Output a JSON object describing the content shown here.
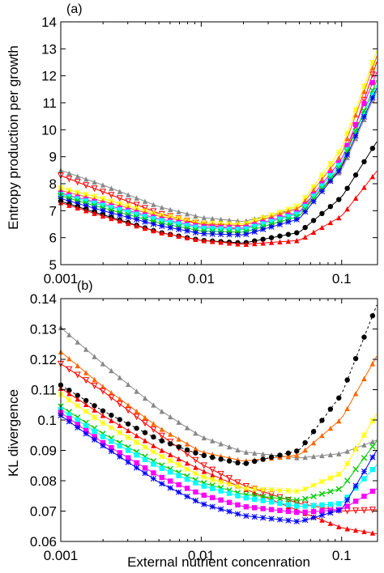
{
  "chart_data": [
    {
      "type": "line",
      "panel_label": "(a)",
      "xlabel": "",
      "ylabel": "Entropy production per growth",
      "xscale": "log",
      "xlim": [
        0.001,
        0.18
      ],
      "ylim": [
        5,
        14
      ],
      "xticks": [
        0.001,
        0.01,
        0.1
      ],
      "xtick_labels": [
        "0.001",
        "0.01",
        "0.1"
      ],
      "yticks": [
        5,
        6,
        7,
        8,
        9,
        10,
        11,
        12,
        13,
        14
      ],
      "ytick_labels": [
        "5",
        "6",
        "7",
        "8",
        "9",
        "10",
        "11",
        "12",
        "13",
        "14"
      ],
      "grid": false,
      "series": [
        {
          "color": "#888888",
          "marker": "triangle",
          "x": [
            0.001,
            0.002,
            0.005,
            0.01,
            0.02,
            0.05,
            0.1,
            0.18
          ],
          "values": [
            8.5,
            7.95,
            7.15,
            6.75,
            6.6,
            7.1,
            8.5,
            11.5
          ]
        },
        {
          "color": "#ff0000",
          "marker": "triangle-down",
          "x": [
            0.001,
            0.002,
            0.005,
            0.01,
            0.02,
            0.05,
            0.1,
            0.18
          ],
          "values": [
            8.3,
            7.7,
            6.9,
            6.5,
            6.3,
            6.9,
            8.6,
            12.6
          ]
        },
        {
          "color": "#ffff00",
          "marker": "star",
          "x": [
            0.001,
            0.002,
            0.005,
            0.01,
            0.02,
            0.05,
            0.1,
            0.18
          ],
          "values": [
            7.85,
            7.45,
            6.85,
            6.55,
            6.5,
            7.2,
            9.3,
            13.0
          ]
        },
        {
          "color": "#ff6600",
          "marker": "triangle",
          "x": [
            0.001,
            0.002,
            0.005,
            0.01,
            0.02,
            0.05,
            0.1,
            0.18
          ],
          "values": [
            7.75,
            7.35,
            6.8,
            6.5,
            6.45,
            7.1,
            9.1,
            12.8
          ]
        },
        {
          "color": "#ff00ff",
          "marker": "square",
          "x": [
            0.001,
            0.002,
            0.005,
            0.01,
            0.02,
            0.05,
            0.1,
            0.18
          ],
          "values": [
            7.65,
            7.25,
            6.7,
            6.4,
            6.35,
            6.95,
            8.9,
            12.2
          ]
        },
        {
          "color": "#00ffff",
          "marker": "square",
          "x": [
            0.001,
            0.002,
            0.005,
            0.01,
            0.02,
            0.05,
            0.1,
            0.18
          ],
          "values": [
            7.6,
            7.2,
            6.65,
            6.35,
            6.3,
            6.9,
            8.8,
            11.7
          ]
        },
        {
          "color": "#00cc00",
          "marker": "x",
          "x": [
            0.001,
            0.002,
            0.005,
            0.01,
            0.02,
            0.05,
            0.1,
            0.18
          ],
          "values": [
            7.55,
            7.1,
            6.55,
            6.25,
            6.2,
            6.8,
            8.7,
            11.9
          ]
        },
        {
          "color": "#0000ff",
          "marker": "star",
          "x": [
            0.001,
            0.002,
            0.005,
            0.01,
            0.02,
            0.05,
            0.1,
            0.18
          ],
          "values": [
            7.45,
            7.0,
            6.45,
            6.15,
            6.1,
            6.7,
            8.6,
            11.6
          ]
        },
        {
          "color": "#000000",
          "marker": "circle",
          "x": [
            0.001,
            0.002,
            0.005,
            0.01,
            0.02,
            0.05,
            0.1,
            0.18
          ],
          "values": [
            7.35,
            6.85,
            6.2,
            5.9,
            5.8,
            6.2,
            7.5,
            9.6
          ]
        },
        {
          "color": "#ff0000",
          "marker": "triangle",
          "x": [
            0.001,
            0.002,
            0.005,
            0.01,
            0.02,
            0.05,
            0.1,
            0.18
          ],
          "values": [
            7.3,
            6.8,
            6.2,
            5.9,
            5.75,
            5.9,
            6.8,
            8.5
          ]
        }
      ]
    },
    {
      "type": "line",
      "panel_label": "(b)",
      "xlabel": "External nutrient concenration",
      "ylabel": "KL divergence",
      "xscale": "log",
      "xlim": [
        0.001,
        0.18
      ],
      "ylim": [
        0.06,
        0.14
      ],
      "xticks": [
        0.001,
        0.01,
        0.1
      ],
      "xtick_labels": [
        "0.001",
        "0.01",
        "0.1"
      ],
      "yticks": [
        0.06,
        0.07,
        0.08,
        0.09,
        0.1,
        0.11,
        0.12,
        0.13,
        0.14
      ],
      "ytick_labels": [
        "0.06",
        "0.07",
        "0.08",
        "0.09",
        "0.1",
        "0.11",
        "0.12",
        "0.13",
        "0.14"
      ],
      "grid": false,
      "series": [
        {
          "color": "#888888",
          "marker": "triangle",
          "x": [
            0.001,
            0.002,
            0.005,
            0.01,
            0.02,
            0.05,
            0.1,
            0.18
          ],
          "values": [
            0.1305,
            0.1185,
            0.1035,
            0.0945,
            0.0895,
            0.0875,
            0.089,
            0.0935
          ]
        },
        {
          "color": "#ff6600",
          "marker": "triangle",
          "x": [
            0.001,
            0.002,
            0.005,
            0.01,
            0.02,
            0.05,
            0.1,
            0.18
          ],
          "values": [
            0.1225,
            0.111,
            0.0975,
            0.0895,
            0.0865,
            0.0885,
            0.1005,
            0.1215
          ]
        },
        {
          "color": "#ff0000",
          "marker": "triangle-down",
          "x": [
            0.001,
            0.002,
            0.005,
            0.01,
            0.02,
            0.05,
            0.1,
            0.18
          ],
          "values": [
            0.1185,
            0.1095,
            0.0955,
            0.0855,
            0.0785,
            0.0725,
            0.07,
            0.0705
          ]
        },
        {
          "color": "#000000",
          "marker": "circle",
          "dashed": true,
          "x": [
            0.001,
            0.002,
            0.005,
            0.01,
            0.02,
            0.05,
            0.1,
            0.18
          ],
          "values": [
            0.1115,
            0.103,
            0.0935,
            0.0885,
            0.0855,
            0.09,
            0.1085,
            0.1385
          ]
        },
        {
          "color": "#ff0000",
          "marker": "triangle",
          "x": [
            0.001,
            0.002,
            0.005,
            0.01,
            0.02,
            0.05,
            0.1,
            0.18
          ],
          "values": [
            0.1105,
            0.1015,
            0.0905,
            0.0835,
            0.0775,
            0.07,
            0.0645,
            0.0625
          ]
        },
        {
          "color": "#ffff00",
          "marker": "star",
          "x": [
            0.001,
            0.002,
            0.005,
            0.01,
            0.02,
            0.05,
            0.1,
            0.18
          ],
          "values": [
            0.1085,
            0.099,
            0.0885,
            0.0815,
            0.0775,
            0.0765,
            0.0825,
            0.1025
          ]
        },
        {
          "color": "#00cc00",
          "marker": "x",
          "x": [
            0.001,
            0.002,
            0.005,
            0.01,
            0.02,
            0.05,
            0.1,
            0.18
          ],
          "values": [
            0.1045,
            0.0955,
            0.0855,
            0.0795,
            0.0755,
            0.0735,
            0.0775,
            0.0935
          ]
        },
        {
          "color": "#00ffff",
          "marker": "square",
          "x": [
            0.001,
            0.002,
            0.005,
            0.01,
            0.02,
            0.05,
            0.1,
            0.18
          ],
          "values": [
            0.1035,
            0.0945,
            0.0845,
            0.0785,
            0.0745,
            0.0715,
            0.0725,
            0.0855
          ]
        },
        {
          "color": "#ff00ff",
          "marker": "square",
          "x": [
            0.001,
            0.002,
            0.005,
            0.01,
            0.02,
            0.05,
            0.1,
            0.18
          ],
          "values": [
            0.1025,
            0.0925,
            0.0815,
            0.0755,
            0.0715,
            0.0695,
            0.0705,
            0.0775
          ]
        },
        {
          "color": "#0000ff",
          "marker": "star",
          "x": [
            0.001,
            0.002,
            0.005,
            0.01,
            0.02,
            0.05,
            0.1,
            0.18
          ],
          "values": [
            0.1015,
            0.0915,
            0.0795,
            0.0725,
            0.0685,
            0.0665,
            0.0705,
            0.0905
          ]
        }
      ]
    }
  ]
}
